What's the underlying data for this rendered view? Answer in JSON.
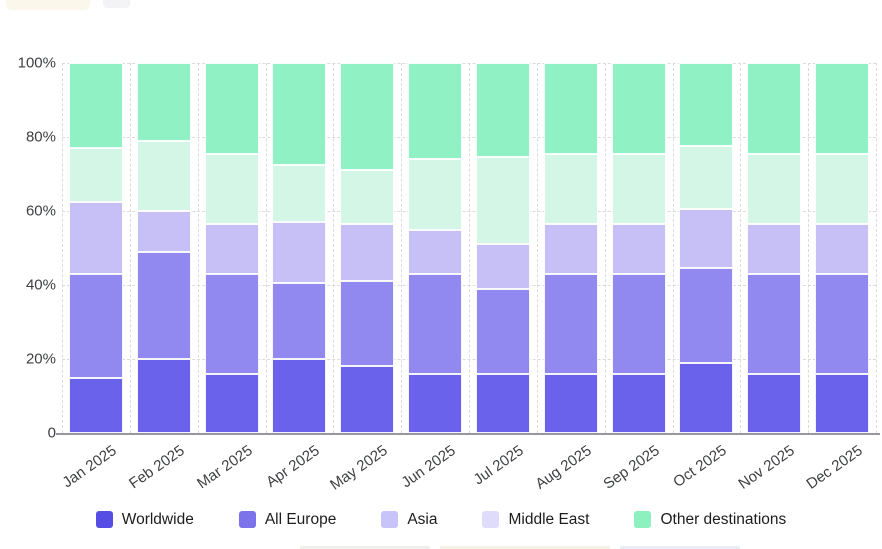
{
  "chart_data": {
    "type": "bar",
    "stacked": true,
    "percent": true,
    "categories": [
      "Jan 2025",
      "Feb 2025",
      "Mar 2025",
      "Apr 2025",
      "May 2025",
      "Jun 2025",
      "Jul 2025",
      "Aug 2025",
      "Sep 2025",
      "Oct 2025",
      "Nov 2025",
      "Dec 2025"
    ],
    "series": [
      {
        "name": "Worldwide",
        "bar_color": "#6b62ec",
        "legend_color": "#564de5",
        "values": [
          15,
          20,
          16,
          20,
          18,
          16,
          16,
          16,
          16,
          19,
          16,
          16
        ]
      },
      {
        "name": "All Europe",
        "bar_color": "#9189f0",
        "legend_color": "#7c73ea",
        "values": [
          28,
          29,
          27,
          20.5,
          23,
          27,
          23,
          27,
          27,
          25.5,
          27,
          27
        ]
      },
      {
        "name": "Asia",
        "bar_color": "#c6c0f7",
        "legend_color": "#c8c3f8",
        "values": [
          19.5,
          11,
          13.5,
          16.5,
          15.5,
          12,
          12,
          13.5,
          13.5,
          16,
          13.5,
          13.5
        ]
      },
      {
        "name": "Middle East",
        "bar_color": "#d4f6e6",
        "legend_color": "#dfdcfb",
        "values": [
          14.5,
          19,
          19,
          15.5,
          14.5,
          19,
          23.5,
          19,
          19,
          17,
          19,
          19
        ]
      },
      {
        "name": "Other destinations",
        "bar_color": "#90f1c4",
        "legend_color": "#8cf0bf",
        "values": [
          23,
          21,
          24.5,
          27.5,
          29,
          26,
          25.5,
          24.5,
          24.5,
          22.5,
          24.5,
          24.5
        ]
      }
    ],
    "y_ticks": [
      "100%",
      "80%",
      "60%",
      "40%",
      "20%",
      "0"
    ],
    "y_tick_values": [
      100,
      80,
      60,
      40,
      20,
      0
    ],
    "ylim": [
      0,
      100
    ],
    "grid": "dashed",
    "legend_position": "bottom",
    "colors": {
      "grid": "#dbdbdb",
      "axis_line": "#96989d",
      "tick_text": "#3d3f42",
      "legend_text": "#1d1d1f",
      "background": "#ffffff"
    }
  }
}
